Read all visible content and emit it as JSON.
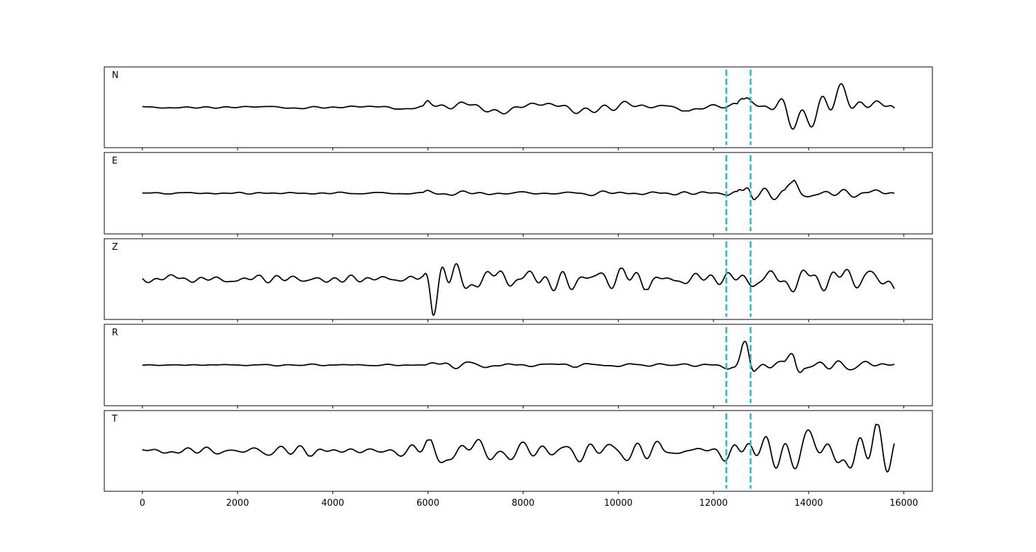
{
  "chart_data": {
    "type": "line",
    "xlim": [
      -800,
      16600
    ],
    "x_ticks": [
      0,
      2000,
      4000,
      6000,
      8000,
      10000,
      12000,
      14000,
      16000
    ],
    "x_tick_labels": [
      "0",
      "2000",
      "4000",
      "6000",
      "8000",
      "10000",
      "12000",
      "14000",
      "16000"
    ],
    "shared_x": true,
    "y_ticks_shown": false,
    "grid": false,
    "vlines": [
      {
        "x": 12270,
        "style": "dashed",
        "color": "#17becf"
      },
      {
        "x": 12780,
        "style": "dashed",
        "color": "#17becf"
      }
    ],
    "trace_x_range": [
      0,
      15800
    ],
    "series": [
      {
        "name": "N",
        "color": "#000000",
        "envelope_x": [
          0,
          5900,
          6000,
          6500,
          7000,
          7500,
          8000,
          9000,
          10500,
          11000,
          12200,
          12500,
          12600,
          12700,
          12800,
          13000,
          13500,
          14000,
          14500,
          15000,
          15500,
          15800
        ],
        "envelope_amp": [
          0.04,
          0.05,
          0.25,
          0.3,
          0.3,
          0.25,
          0.2,
          0.2,
          0.18,
          0.1,
          0.1,
          0.2,
          0.95,
          0.95,
          0.6,
          0.55,
          0.75,
          0.55,
          0.65,
          0.65,
          0.6,
          0.55
        ],
        "seed": 11
      },
      {
        "name": "E",
        "color": "#000000",
        "envelope_x": [
          0,
          5900,
          6000,
          6500,
          7000,
          8000,
          9000,
          10500,
          12200,
          12500,
          12600,
          12750,
          12900,
          13500,
          13700,
          13900,
          14500,
          15000,
          15500,
          15800
        ],
        "envelope_amp": [
          0.02,
          0.03,
          0.15,
          0.12,
          0.08,
          0.06,
          0.07,
          0.05,
          0.04,
          0.15,
          0.95,
          0.95,
          0.3,
          0.15,
          0.7,
          0.2,
          0.18,
          0.15,
          0.15,
          0.12
        ],
        "seed": 23
      },
      {
        "name": "Z",
        "color": "#000000",
        "envelope_x": [
          0,
          700,
          1000,
          5500,
          5900,
          6100,
          6400,
          6700,
          7000,
          7700,
          8000,
          9000,
          10000,
          12000,
          12600,
          13000,
          14000,
          15000,
          15500,
          15800
        ],
        "envelope_amp": [
          0.1,
          0.12,
          0.1,
          0.12,
          0.2,
          1.0,
          0.9,
          0.6,
          0.35,
          0.4,
          0.3,
          0.35,
          0.3,
          0.25,
          0.35,
          0.4,
          0.5,
          0.45,
          0.35,
          0.35
        ],
        "seed": 37
      },
      {
        "name": "R",
        "color": "#000000",
        "envelope_x": [
          0,
          5900,
          6000,
          6500,
          7000,
          8000,
          9000,
          10500,
          12000,
          12400,
          12600,
          12700,
          12900,
          13500,
          13700,
          13900,
          14500,
          15000,
          15800
        ],
        "envelope_amp": [
          0.02,
          0.03,
          0.15,
          0.12,
          0.1,
          0.06,
          0.06,
          0.05,
          0.05,
          0.2,
          0.95,
          0.95,
          0.3,
          0.2,
          0.75,
          0.2,
          0.2,
          0.15,
          0.1
        ],
        "seed": 51
      },
      {
        "name": "T",
        "color": "#000000",
        "envelope_x": [
          0,
          5500,
          6000,
          6500,
          7000,
          7700,
          8000,
          9000,
          10000,
          10900,
          11000,
          12000,
          12500,
          12700,
          13000,
          13500,
          14000,
          14500,
          14700,
          15000,
          15500,
          15800
        ],
        "envelope_amp": [
          0.12,
          0.15,
          0.3,
          0.35,
          0.3,
          0.45,
          0.3,
          0.3,
          0.3,
          0.4,
          0.25,
          0.2,
          0.5,
          0.6,
          0.45,
          0.55,
          0.75,
          0.85,
          0.95,
          0.9,
          0.7,
          0.65
        ],
        "seed": 73
      }
    ]
  }
}
